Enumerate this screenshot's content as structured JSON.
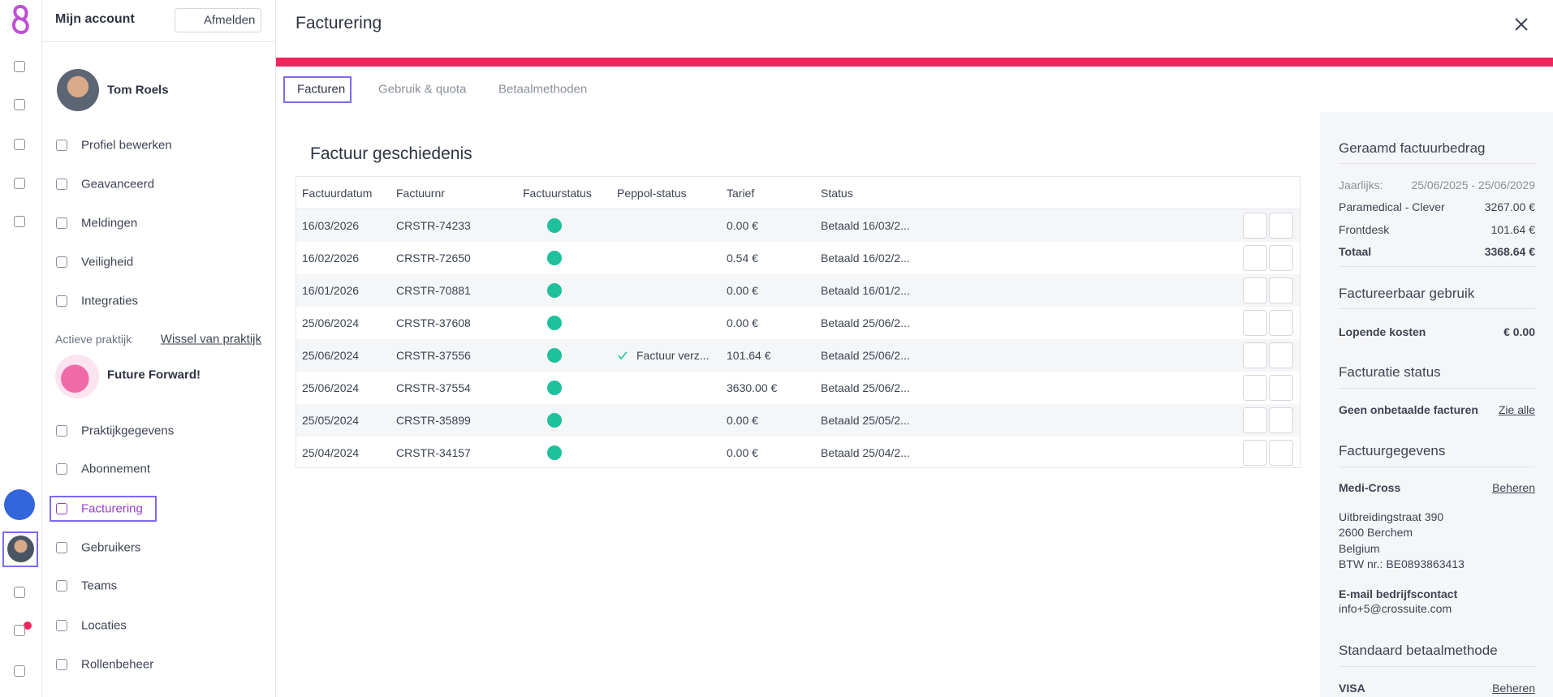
{
  "sidebar": {
    "title": "Mijn account",
    "logout": "Afmelden",
    "user": "Tom Roels",
    "personal_menu": [
      "Profiel bewerken",
      "Geavanceerd",
      "Meldingen",
      "Veiligheid",
      "Integraties"
    ],
    "practice_label": "Actieve praktijk",
    "switch_practice": "Wissel van praktijk",
    "practice_name": "Future Forward!",
    "practice_menu": [
      "Praktijkgegevens",
      "Abonnement",
      "Facturering",
      "Gebruikers",
      "Teams",
      "Locaties",
      "Rollenbeheer"
    ]
  },
  "page": {
    "title": "Facturering",
    "tabs": [
      "Facturen",
      "Gebruik & quota",
      "Betaalmethoden"
    ]
  },
  "table": {
    "title": "Factuur geschiedenis",
    "columns": [
      "Factuurdatum",
      "Factuurnr",
      "Factuurstatus",
      "Peppol-status",
      "Tarief",
      "Status"
    ],
    "rows": [
      {
        "date": "16/03/2026",
        "number": "CRSTR-74233",
        "amount": "0.00 €",
        "status": "Betaald 16/03/2..."
      },
      {
        "date": "16/02/2026",
        "number": "CRSTR-72650",
        "amount": "0.54 €",
        "status": "Betaald 16/02/2..."
      },
      {
        "date": "16/01/2026",
        "number": "CRSTR-70881",
        "amount": "0.00 €",
        "status": "Betaald 16/01/2..."
      },
      {
        "date": "25/06/2024",
        "number": "CRSTR-37608",
        "amount": "0.00 €",
        "status": "Betaald 25/06/2..."
      },
      {
        "date": "25/06/2024",
        "number": "CRSTR-37556",
        "peppol": "Factuur verz...",
        "amount": "101.64 €",
        "status": "Betaald 25/06/2..."
      },
      {
        "date": "25/06/2024",
        "number": "CRSTR-37554",
        "amount": "3630.00 €",
        "status": "Betaald 25/06/2..."
      },
      {
        "date": "25/05/2024",
        "number": "CRSTR-35899",
        "amount": "0.00 €",
        "status": "Betaald 25/05/2..."
      },
      {
        "date": "25/04/2024",
        "number": "CRSTR-34157",
        "amount": "0.00 €",
        "status": "Betaald 25/04/2..."
      }
    ]
  },
  "summary": {
    "estimate_title": "Geraamd factuurbedrag",
    "period_label": "Jaarlijks:",
    "period": "25/06/2025 - 25/06/2029",
    "lines": [
      {
        "label": "Paramedical - Clever",
        "amount": "3267.00 €"
      },
      {
        "label": "Frontdesk",
        "amount": "101.64 €"
      }
    ],
    "total_label": "Totaal",
    "total": "3368.64 €",
    "usage_title": "Factureerbaar gebruik",
    "running_label": "Lopende kosten",
    "running": "€ 0.00",
    "status_title": "Facturatie status",
    "status_text": "Geen onbetaalde facturen",
    "see_all": "Zie alle",
    "details_title": "Factuurgegevens",
    "company": "Medi-Cross",
    "manage": "Beheren",
    "address": [
      "Uitbreidingstraat 390",
      "2600 Berchem",
      "Belgium",
      "BTW nr.: BE0893863413"
    ],
    "email_label": "E-mail bedrijfscontact",
    "email": "info+5@crossuite.com",
    "payment_title": "Standaard betaalmethode",
    "payment": "VISA",
    "payment_manage": "Beheren"
  }
}
